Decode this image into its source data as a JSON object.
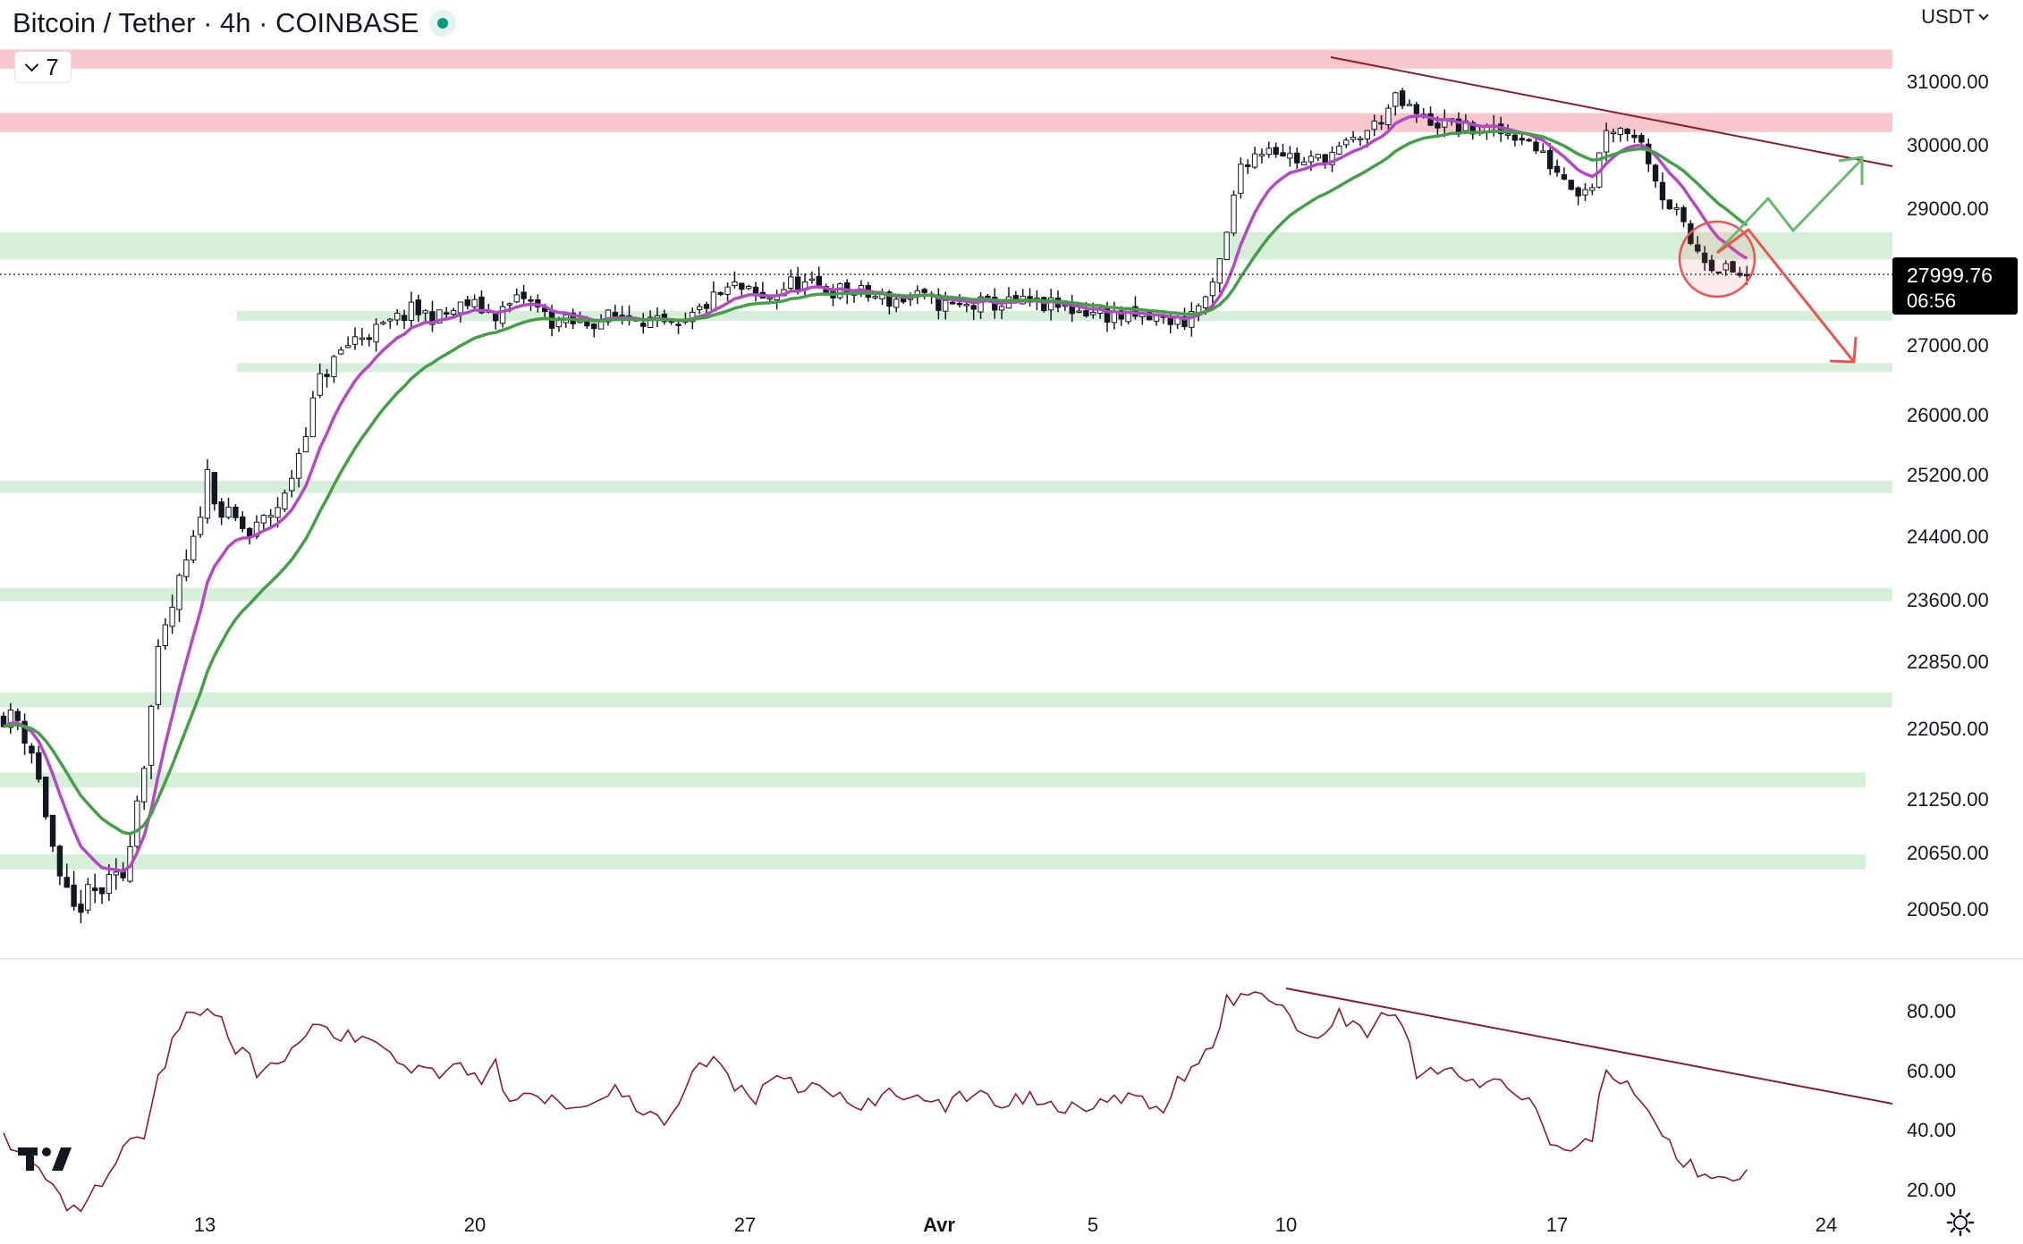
{
  "header": {
    "title": "Bitcoin / Tether · 4h · COINBASE",
    "indicator_count": "7",
    "currency": "USDT"
  },
  "colors": {
    "candle": "#131722",
    "ema_fast": "#b548c6",
    "ema_slow": "#43a047",
    "resistance_zone": "#f7c7cc",
    "support_zone": "#d6efd8",
    "trendline": "#8b1c2c",
    "rsi": "#8b1c2c",
    "bull_arrow": "#66bb6a",
    "bear_arrow": "#ef5350",
    "price_label_bg": "#000000"
  },
  "icons": {
    "logo": "tradingview-logo-icon",
    "settings": "gear-icon"
  },
  "chart_data": [
    {
      "type": "candlestick",
      "title": "Bitcoin / Tether · 4h · COINBASE",
      "timeframe": "4h",
      "price_axis": {
        "ticks": [
          31000,
          30000,
          29000,
          27000,
          26000,
          25200,
          24400,
          23600,
          22850,
          22050,
          21250,
          20650,
          20050
        ],
        "tick_labels": [
          "31000.00",
          "30000.00",
          "29000.00",
          "27000.00",
          "26000.00",
          "25200.00",
          "24400.00",
          "23600.00",
          "22850.00",
          "22050.00",
          "21250.00",
          "20650.00",
          "20050.00"
        ]
      },
      "time_axis": {
        "labels": [
          "13",
          "20",
          "27",
          "Avr",
          "5",
          "10",
          "17",
          "24"
        ]
      },
      "current_price": "27999.76",
      "countdown": "06:56",
      "waypoints": [
        [
          0,
          22200
        ],
        [
          2,
          22150
        ],
        [
          4,
          21800
        ],
        [
          6,
          21100
        ],
        [
          8,
          20300
        ],
        [
          10,
          20020
        ],
        [
          12,
          20180
        ],
        [
          14,
          20250
        ],
        [
          17,
          20400
        ],
        [
          20,
          21700
        ],
        [
          22,
          22900
        ],
        [
          25,
          23800
        ],
        [
          27,
          24300
        ],
        [
          29,
          25200
        ],
        [
          31,
          24700
        ],
        [
          33,
          24600
        ],
        [
          35,
          24400
        ],
        [
          37,
          24600
        ],
        [
          40,
          24900
        ],
        [
          42,
          25500
        ],
        [
          45,
          26500
        ],
        [
          48,
          26900
        ],
        [
          50,
          27100
        ],
        [
          54,
          27250
        ],
        [
          58,
          27500
        ],
        [
          62,
          27400
        ],
        [
          66,
          27600
        ],
        [
          70,
          27450
        ],
        [
          74,
          27700
        ],
        [
          78,
          27350
        ],
        [
          82,
          27300
        ],
        [
          86,
          27400
        ],
        [
          90,
          27450
        ],
        [
          93,
          27300
        ],
        [
          96,
          27200
        ],
        [
          100,
          27600
        ],
        [
          104,
          27850
        ],
        [
          108,
          27650
        ],
        [
          112,
          27900
        ],
        [
          118,
          27800
        ],
        [
          122,
          27750
        ],
        [
          126,
          27650
        ],
        [
          130,
          27700
        ],
        [
          135,
          27550
        ],
        [
          140,
          27600
        ],
        [
          146,
          27600
        ],
        [
          150,
          27550
        ],
        [
          154,
          27500
        ],
        [
          160,
          27400
        ],
        [
          168,
          27350
        ],
        [
          172,
          27800
        ],
        [
          174,
          28600
        ],
        [
          176,
          29700
        ],
        [
          180,
          30000
        ],
        [
          185,
          29700
        ],
        [
          190,
          29900
        ],
        [
          195,
          30300
        ],
        [
          198,
          30700
        ],
        [
          202,
          30400
        ],
        [
          208,
          30250
        ],
        [
          212,
          30200
        ],
        [
          216,
          30150
        ],
        [
          220,
          29700
        ],
        [
          224,
          29300
        ],
        [
          226,
          29400
        ],
        [
          228,
          30300
        ],
        [
          232,
          30200
        ],
        [
          234,
          29800
        ],
        [
          236,
          29200
        ],
        [
          238,
          28900
        ],
        [
          240,
          28500
        ],
        [
          243,
          28200
        ],
        [
          246,
          28050
        ],
        [
          248,
          28000
        ]
      ],
      "zones": [
        {
          "kind": "resistance",
          "from": 31500,
          "to": 31200
        },
        {
          "kind": "resistance",
          "from": 30500,
          "to": 30200
        },
        {
          "kind": "support",
          "from": 28650,
          "to": 28250
        },
        {
          "kind": "support",
          "from": 27500,
          "to": 27350
        },
        {
          "kind": "support",
          "from": 26740,
          "to": 26610
        },
        {
          "kind": "support",
          "from": 25120,
          "to": 24960
        },
        {
          "kind": "support",
          "from": 23750,
          "to": 23580
        },
        {
          "kind": "support",
          "from": 22480,
          "to": 22300
        },
        {
          "kind": "support",
          "from": 21550,
          "to": 21380
        },
        {
          "kind": "support",
          "from": 20630,
          "to": 20470
        }
      ]
    },
    {
      "type": "line",
      "name": "RSI",
      "ylim": [
        15,
        90
      ],
      "ticks": [
        80,
        60,
        40,
        20
      ],
      "tick_labels": [
        "80.00",
        "60.00",
        "40.00",
        "20.00"
      ],
      "waypoints": [
        [
          0,
          36
        ],
        [
          2,
          34
        ],
        [
          4,
          30
        ],
        [
          6,
          24
        ],
        [
          8,
          17
        ],
        [
          10,
          13
        ],
        [
          12,
          16
        ],
        [
          15,
          26
        ],
        [
          18,
          38
        ],
        [
          20,
          40
        ],
        [
          24,
          72
        ],
        [
          27,
          80
        ],
        [
          29,
          82
        ],
        [
          31,
          77
        ],
        [
          33,
          68
        ],
        [
          35,
          63
        ],
        [
          37,
          58
        ],
        [
          40,
          64
        ],
        [
          43,
          73
        ],
        [
          46,
          74
        ],
        [
          48,
          71
        ],
        [
          50,
          70
        ],
        [
          53,
          71
        ],
        [
          56,
          63
        ],
        [
          59,
          61
        ],
        [
          62,
          60
        ],
        [
          65,
          63
        ],
        [
          68,
          57
        ],
        [
          70,
          62
        ],
        [
          72,
          47
        ],
        [
          74,
          55
        ],
        [
          77,
          51
        ],
        [
          80,
          50
        ],
        [
          83,
          49
        ],
        [
          86,
          54
        ],
        [
          89,
          49
        ],
        [
          92,
          44
        ],
        [
          95,
          43
        ],
        [
          98,
          60
        ],
        [
          101,
          63
        ],
        [
          104,
          55
        ],
        [
          107,
          51
        ],
        [
          110,
          56
        ],
        [
          113,
          54
        ],
        [
          116,
          54
        ],
        [
          120,
          50
        ],
        [
          123,
          48
        ],
        [
          126,
          52
        ],
        [
          130,
          53
        ],
        [
          134,
          47
        ],
        [
          138,
          53
        ],
        [
          142,
          49
        ],
        [
          146,
          51
        ],
        [
          150,
          48
        ],
        [
          154,
          49
        ],
        [
          158,
          50
        ],
        [
          162,
          49
        ],
        [
          165,
          47
        ],
        [
          168,
          59
        ],
        [
          170,
          60
        ],
        [
          172,
          70
        ],
        [
          174,
          83
        ],
        [
          177,
          85
        ],
        [
          180,
          84
        ],
        [
          183,
          79
        ],
        [
          186,
          69
        ],
        [
          190,
          79
        ],
        [
          194,
          73
        ],
        [
          197,
          79
        ],
        [
          199,
          76
        ],
        [
          201,
          58
        ],
        [
          204,
          61
        ],
        [
          208,
          57
        ],
        [
          212,
          55
        ],
        [
          216,
          52
        ],
        [
          218,
          47
        ],
        [
          220,
          37
        ],
        [
          222,
          31
        ],
        [
          224,
          35
        ],
        [
          226,
          39
        ],
        [
          228,
          60
        ],
        [
          230,
          57
        ],
        [
          232,
          54
        ],
        [
          234,
          45
        ],
        [
          236,
          37
        ],
        [
          238,
          32
        ],
        [
          240,
          28
        ],
        [
          242,
          23
        ],
        [
          244,
          27
        ],
        [
          246,
          25
        ],
        [
          248,
          24
        ]
      ]
    }
  ]
}
